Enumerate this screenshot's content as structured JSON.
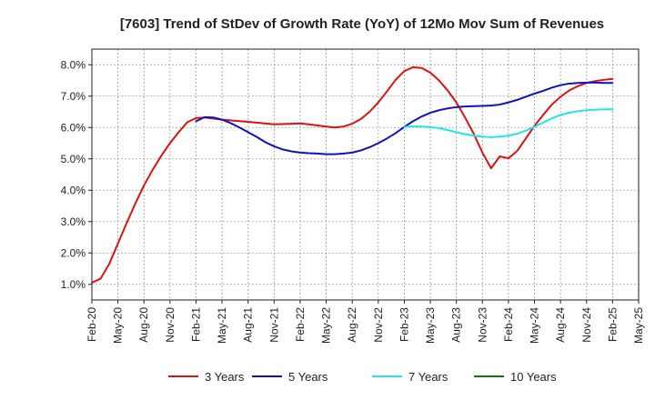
{
  "chart_data": {
    "type": "line",
    "title": "[7603]  Trend of StDev of Growth Rate (YoY) of 12Mo Mov Sum of Revenues",
    "xlabel": "",
    "ylabel": "",
    "ylim": [
      0.005,
      0.085
    ],
    "yticks": [
      0.01,
      0.02,
      0.03,
      0.04,
      0.05,
      0.06,
      0.07,
      0.08
    ],
    "ytick_labels": [
      "1.0%",
      "2.0%",
      "3.0%",
      "4.0%",
      "5.0%",
      "6.0%",
      "7.0%",
      "8.0%"
    ],
    "x_start": "2020-02",
    "x_end": "2025-05",
    "xtick_labels": [
      "Feb-20",
      "May-20",
      "Aug-20",
      "Nov-20",
      "Feb-21",
      "May-21",
      "Aug-21",
      "Nov-21",
      "Feb-22",
      "May-22",
      "Aug-22",
      "Nov-22",
      "Feb-23",
      "May-23",
      "Aug-23",
      "Nov-23",
      "Feb-24",
      "May-24",
      "Aug-24",
      "Nov-24",
      "Feb-25",
      "May-25"
    ],
    "grid": true,
    "legend_position": "bottom",
    "series": [
      {
        "name": "3 Years",
        "color": "#dd1111",
        "x": [
          "2020-02",
          "2020-03",
          "2020-04",
          "2020-05",
          "2020-06",
          "2020-07",
          "2020-08",
          "2020-09",
          "2020-10",
          "2020-11",
          "2020-12",
          "2021-01",
          "2021-02",
          "2021-03",
          "2021-05",
          "2021-08",
          "2021-11",
          "2022-01",
          "2022-02",
          "2022-03",
          "2022-05",
          "2022-06",
          "2022-07",
          "2022-08",
          "2022-09",
          "2022-10",
          "2022-11",
          "2022-12",
          "2023-01",
          "2023-02",
          "2023-03",
          "2023-04",
          "2023-05",
          "2023-06",
          "2023-07",
          "2023-08",
          "2023-09",
          "2023-10",
          "2023-11",
          "2023-12",
          "2024-01",
          "2024-02",
          "2024-03",
          "2024-04",
          "2024-05",
          "2024-06",
          "2024-07",
          "2024-08",
          "2024-09",
          "2024-10",
          "2024-11",
          "2024-12",
          "2025-01",
          "2025-02"
        ],
        "values": [
          0.0105,
          0.0118,
          0.0165,
          0.023,
          0.0295,
          0.0357,
          0.0415,
          0.0465,
          0.051,
          0.055,
          0.0585,
          0.0617,
          0.063,
          0.0632,
          0.0625,
          0.0618,
          0.061,
          0.0612,
          0.0613,
          0.061,
          0.0603,
          0.06,
          0.0603,
          0.0612,
          0.0627,
          0.065,
          0.068,
          0.0715,
          0.0752,
          0.078,
          0.0792,
          0.079,
          0.0775,
          0.075,
          0.0718,
          0.068,
          0.0632,
          0.058,
          0.052,
          0.047,
          0.0508,
          0.0502,
          0.0525,
          0.0565,
          0.0605,
          0.064,
          0.0673,
          0.0698,
          0.0718,
          0.0732,
          0.0742,
          0.0748,
          0.0752,
          0.0755
        ]
      },
      {
        "name": "5 Years",
        "color": "#1111bb",
        "x": [
          "2021-02",
          "2021-03",
          "2021-04",
          "2021-05",
          "2021-06",
          "2021-07",
          "2021-08",
          "2021-09",
          "2021-10",
          "2021-11",
          "2021-12",
          "2022-01",
          "2022-02",
          "2022-03",
          "2022-04",
          "2022-05",
          "2022-06",
          "2022-07",
          "2022-08",
          "2022-09",
          "2022-10",
          "2022-11",
          "2022-12",
          "2023-01",
          "2023-02",
          "2023-03",
          "2023-04",
          "2023-05",
          "2023-06",
          "2023-07",
          "2023-08",
          "2023-09",
          "2023-10",
          "2023-11",
          "2023-12",
          "2024-01",
          "2024-02",
          "2024-03",
          "2024-04",
          "2024-05",
          "2024-06",
          "2024-07",
          "2024-08",
          "2024-09",
          "2024-10",
          "2024-11",
          "2024-12",
          "2025-01",
          "2025-02"
        ],
        "values": [
          0.062,
          0.0633,
          0.0632,
          0.0625,
          0.0614,
          0.06,
          0.0585,
          0.057,
          0.0553,
          0.054,
          0.053,
          0.0524,
          0.052,
          0.0518,
          0.0517,
          0.0515,
          0.0515,
          0.0517,
          0.052,
          0.0527,
          0.0537,
          0.055,
          0.0565,
          0.0582,
          0.0602,
          0.062,
          0.0635,
          0.0647,
          0.0655,
          0.0661,
          0.0665,
          0.0667,
          0.0668,
          0.0669,
          0.067,
          0.0673,
          0.068,
          0.0688,
          0.0698,
          0.0708,
          0.0717,
          0.0727,
          0.0735,
          0.074,
          0.0742,
          0.0743,
          0.0743,
          0.0742,
          0.0742
        ]
      },
      {
        "name": "7 Years",
        "color": "#22e5e5",
        "x": [
          "2023-02",
          "2023-03",
          "2023-04",
          "2023-05",
          "2023-06",
          "2023-07",
          "2023-08",
          "2023-09",
          "2023-10",
          "2023-11",
          "2023-12",
          "2024-01",
          "2024-02",
          "2024-03",
          "2024-04",
          "2024-05",
          "2024-06",
          "2024-07",
          "2024-08",
          "2024-09",
          "2024-10",
          "2024-11",
          "2024-12",
          "2025-01",
          "2025-02"
        ],
        "values": [
          0.0602,
          0.0604,
          0.0603,
          0.0601,
          0.0598,
          0.0592,
          0.0585,
          0.0579,
          0.0574,
          0.0571,
          0.0569,
          0.0571,
          0.0574,
          0.058,
          0.059,
          0.0602,
          0.0616,
          0.0629,
          0.064,
          0.0647,
          0.0652,
          0.0655,
          0.0657,
          0.0658,
          0.0658
        ]
      },
      {
        "name": "10 Years",
        "color": "#117711",
        "x": [],
        "values": []
      }
    ]
  }
}
